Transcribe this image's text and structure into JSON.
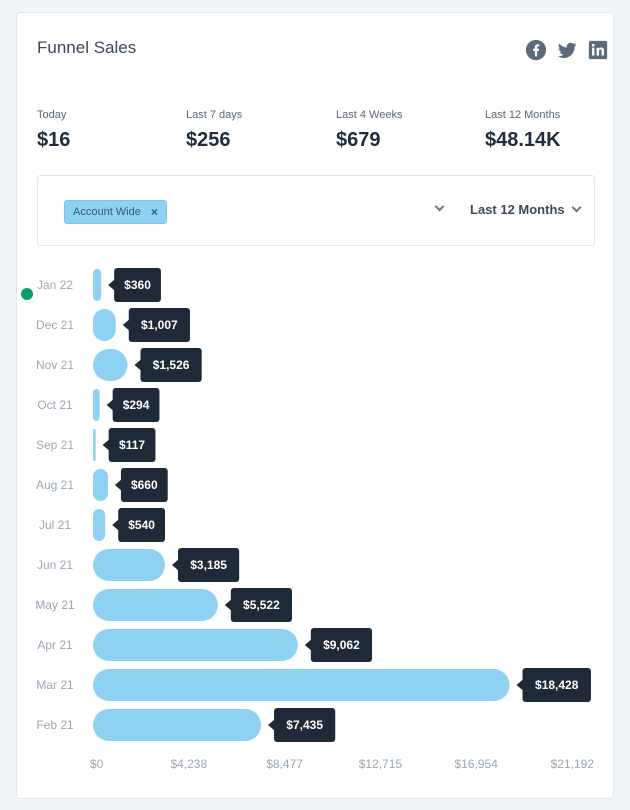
{
  "header": {
    "title": "Funnel Sales"
  },
  "social": [
    {
      "icon": "facebook-icon",
      "color": "#5b6b7c"
    },
    {
      "icon": "twitter-icon",
      "color": "#5b6b7c"
    },
    {
      "icon": "linkedin-icon",
      "color": "#5b6b7c"
    }
  ],
  "stats": [
    {
      "label": "Today",
      "value": "$16"
    },
    {
      "label": "Last 7 days",
      "value": "$256"
    },
    {
      "label": "Last 4 Weeks",
      "value": "$679"
    },
    {
      "label": "Last 12 Months",
      "value": "$48.14K"
    }
  ],
  "filters": {
    "tag": "Account Wide",
    "tag_remove": "×",
    "period": "Last 12 Months"
  },
  "colors": {
    "bar": "#8fd1f3",
    "tooltip": "#1f2a38",
    "indicator": "#0f9d6b"
  },
  "chart_data": {
    "type": "bar",
    "orientation": "horizontal",
    "categories": [
      "Jan 22",
      "Dec 21",
      "Nov 21",
      "Oct 21",
      "Sep 21",
      "Aug 21",
      "Jul 21",
      "Jun 21",
      "May 21",
      "Apr 21",
      "Mar 21",
      "Feb 21"
    ],
    "values": [
      360,
      1007,
      1526,
      294,
      117,
      660,
      540,
      3185,
      5522,
      9062,
      18428,
      7435
    ],
    "value_labels": [
      "$360",
      "$1,007",
      "$1,526",
      "$294",
      "$117",
      "$660",
      "$540",
      "$3,185",
      "$5,522",
      "$9,062",
      "$18,428",
      "$7,435"
    ],
    "x_ticks": [
      0,
      4238,
      8477,
      12715,
      16954,
      21192
    ],
    "x_tick_labels": [
      "$0",
      "$4,238",
      "$8,477",
      "$12,715",
      "$16,954",
      "$21,192"
    ],
    "xlim": [
      0,
      21192
    ],
    "grid": false
  }
}
